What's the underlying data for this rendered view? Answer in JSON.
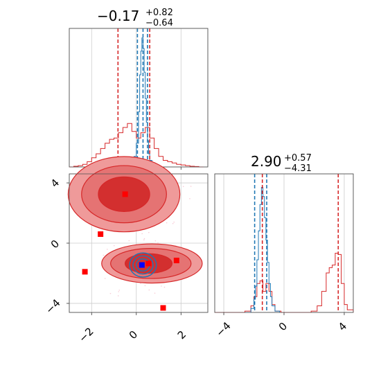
{
  "chart_data": {
    "type": "corner",
    "colors": {
      "red": "#d62728",
      "red_fill": "#ef9a9a",
      "red_dark": "#d32f2f",
      "blue": "#1f77b4",
      "marker_blue": "#0000ff",
      "marker_red": "#ff0000"
    },
    "params": [
      {
        "title_main": "−0.17",
        "title_plus": "+0.82",
        "title_minus": "−0.64"
      },
      {
        "title_main": "2.90",
        "title_plus": "+0.57",
        "title_minus": "−4.31"
      }
    ],
    "x1_ticks": [
      "−2",
      "0",
      "2"
    ],
    "y2_ticks": [
      "4",
      "0",
      "−4"
    ],
    "x2_ticks": [
      "−4",
      "0",
      "4"
    ],
    "x1_range": [
      -3.0,
      3.2
    ],
    "x2_range": [
      -4.6,
      4.6
    ],
    "hist1_red": {
      "x": [
        -3.0,
        -2.8,
        -2.6,
        -2.4,
        -2.2,
        -2.0,
        -1.8,
        -1.6,
        -1.4,
        -1.2,
        -1.0,
        -0.8,
        -0.6,
        -0.4,
        -0.2,
        0.0,
        0.2,
        0.4,
        0.6,
        0.8,
        1.0,
        1.2,
        1.4,
        1.6,
        1.8,
        2.0,
        2.2,
        2.4,
        2.6,
        2.8,
        3.0
      ],
      "y": [
        0,
        0.005,
        0.01,
        0.02,
        0.04,
        0.07,
        0.1,
        0.14,
        0.18,
        0.21,
        0.22,
        0.26,
        0.3,
        0.33,
        0.27,
        0.22,
        0.26,
        0.3,
        0.22,
        0.14,
        0.08,
        0.05,
        0.04,
        0.03,
        0.02,
        0.015,
        0.01,
        0.005,
        0.003,
        0,
        0
      ]
    },
    "hist1_blue": {
      "x": [
        -0.4,
        -0.3,
        -0.2,
        -0.1,
        0.0,
        0.1,
        0.15,
        0.2,
        0.25,
        0.3,
        0.35,
        0.4,
        0.45,
        0.5,
        0.55,
        0.6,
        0.7,
        0.8,
        0.9
      ],
      "y": [
        0,
        0.01,
        0.03,
        0.08,
        0.18,
        0.42,
        0.7,
        0.88,
        0.98,
        0.9,
        0.72,
        0.52,
        0.34,
        0.2,
        0.1,
        0.05,
        0.02,
        0.005,
        0
      ]
    },
    "hist1_lines_red": [
      -0.82,
      0.6
    ],
    "hist1_lines_blue": [
      0.05,
      0.3,
      0.5
    ],
    "hist2_red": {
      "x": [
        -4.6,
        -3.0,
        -2.6,
        -2.2,
        -2.0,
        -1.8,
        -1.6,
        -1.4,
        -1.2,
        -1.0,
        -0.8,
        -0.6,
        -0.2,
        0.4,
        1.2,
        1.8,
        2.2,
        2.5,
        2.8,
        3.0,
        3.2,
        3.4,
        3.6,
        3.8,
        4.0,
        4.2,
        4.6
      ],
      "y": [
        0,
        0,
        0.01,
        0.05,
        0.12,
        0.22,
        0.24,
        0.16,
        0.22,
        0.16,
        0.06,
        0.01,
        0,
        0,
        0,
        0.01,
        0.05,
        0.16,
        0.3,
        0.34,
        0.36,
        0.45,
        0.44,
        0.22,
        0.06,
        0.02,
        0
      ]
    },
    "hist2_blue": {
      "x": [
        -2.6,
        -2.2,
        -2.0,
        -1.9,
        -1.8,
        -1.7,
        -1.6,
        -1.5,
        -1.4,
        -1.3,
        -1.2,
        -1.1,
        -1.0,
        -0.9,
        -0.8,
        -0.6,
        -0.3
      ],
      "y": [
        0,
        0.03,
        0.1,
        0.2,
        0.4,
        0.62,
        0.82,
        0.95,
        0.88,
        0.72,
        0.55,
        0.38,
        0.22,
        0.12,
        0.05,
        0.01,
        0
      ]
    },
    "hist2_lines_red": [
      -1.44,
      3.6
    ],
    "hist2_lines_blue": [
      -1.95,
      -1.15
    ],
    "scatter_markers_red": [
      {
        "x": -0.5,
        "y": 3.25
      },
      {
        "x": -1.6,
        "y": 0.6
      },
      {
        "x": -2.3,
        "y": -1.9
      },
      {
        "x": 0.55,
        "y": -1.35
      },
      {
        "x": 1.8,
        "y": -1.15
      },
      {
        "x": 1.2,
        "y": -4.3
      }
    ],
    "scatter_markers_blue": [
      {
        "x": 0.25,
        "y": -1.45
      }
    ],
    "contours_red": [
      {
        "cx": -0.55,
        "cy": 3.25,
        "rx": 2.5,
        "ry": 2.5,
        "level": 0
      },
      {
        "cx": -0.55,
        "cy": 3.25,
        "rx": 1.9,
        "ry": 1.9,
        "level": 1
      },
      {
        "cx": -0.55,
        "cy": 3.25,
        "rx": 1.15,
        "ry": 1.15,
        "level": 2
      },
      {
        "cx": 0.7,
        "cy": -1.35,
        "rx": 2.25,
        "ry": 1.3,
        "level": 0
      },
      {
        "cx": 0.65,
        "cy": -1.35,
        "rx": 1.8,
        "ry": 1.0,
        "level": 1
      },
      {
        "cx": 0.55,
        "cy": -1.35,
        "rx": 1.05,
        "ry": 0.65,
        "level": 2
      }
    ],
    "contours_blue": [
      {
        "cx": 0.3,
        "cy": -1.45,
        "rx": 0.6,
        "ry": 0.8
      },
      {
        "cx": 0.3,
        "cy": -1.45,
        "rx": 0.45,
        "ry": 0.6
      },
      {
        "cx": 0.3,
        "cy": -1.45,
        "rx": 0.3,
        "ry": 0.4
      }
    ]
  }
}
